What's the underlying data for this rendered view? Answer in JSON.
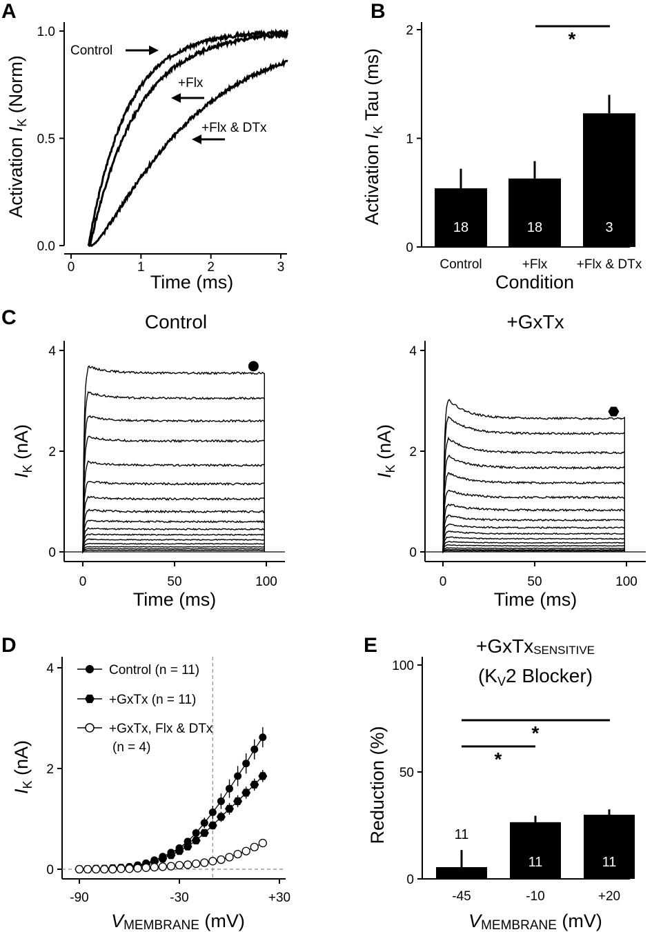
{
  "chart_data": [
    {
      "panel": "A",
      "type": "line",
      "title": "",
      "xlabel": "Time (ms)",
      "ylabel_prefix": "Activation ",
      "ylabel_italic": "I",
      "ylabel_sub": "K",
      "ylabel_suffix": " (Norm)",
      "xlim": [
        -0.2,
        3.1
      ],
      "ylim": [
        0,
        1.0
      ],
      "xticks": [
        "0",
        "1",
        "2",
        "3"
      ],
      "yticks": [
        "0.0",
        "0.5",
        "1.0"
      ],
      "series": [
        {
          "name": "Control",
          "tau": 0.55,
          "delay": 0.25
        },
        {
          "name": "+Flx",
          "tau": 0.68,
          "delay": 0.27
        },
        {
          "name": "+Flx & DTx",
          "tau": 1.25,
          "delay": 0.3
        }
      ],
      "annotations": [
        "Control",
        "+Flx",
        "+Flx & DTx"
      ]
    },
    {
      "panel": "B",
      "type": "bar",
      "xlabel": "Condition",
      "ylabel_prefix": "Activation ",
      "ylabel_italic": "I",
      "ylabel_sub": "K",
      "ylabel_suffix": " Tau (ms)",
      "ylim": [
        0,
        2
      ],
      "yticks": [
        "0",
        "1",
        "2"
      ],
      "categories": [
        "Control",
        "+Flx",
        "+Flx & DTx"
      ],
      "values": [
        0.54,
        0.63,
        1.23
      ],
      "errors": [
        0.18,
        0.16,
        0.17
      ],
      "n": [
        "18",
        "18",
        "3"
      ],
      "significance": "*"
    },
    {
      "panel": "C-left",
      "type": "line",
      "title": "Control",
      "xlabel": "Time (ms)",
      "ylabel_italic": "I",
      "ylabel_sub": "K",
      "ylabel_suffix": " (nA)",
      "xlim": [
        -10,
        110
      ],
      "ylim": [
        -0.2,
        4.2
      ],
      "xticks": [
        "0",
        "50",
        "100"
      ],
      "yticks": [
        "0",
        "2",
        "4"
      ],
      "steady_values": [
        3.55,
        3.05,
        2.6,
        2.2,
        1.72,
        1.35,
        1.05,
        0.8,
        0.6,
        0.45,
        0.34,
        0.24,
        0.16,
        0.1,
        0.06,
        0.03
      ],
      "marker": "circle"
    },
    {
      "panel": "C-right",
      "type": "line",
      "title": "+GxTx",
      "xlabel": "Time (ms)",
      "ylabel_italic": "I",
      "ylabel_sub": "K",
      "ylabel_suffix": " (nA)",
      "xlim": [
        -10,
        110
      ],
      "ylim": [
        -0.2,
        4.2
      ],
      "xticks": [
        "0",
        "50",
        "100"
      ],
      "yticks": [
        "0",
        "2",
        "4"
      ],
      "steady_values": [
        2.65,
        2.35,
        1.97,
        1.67,
        1.37,
        1.08,
        0.83,
        0.63,
        0.48,
        0.36,
        0.26,
        0.18,
        0.12,
        0.07,
        0.04,
        0.02
      ],
      "marker": "hexagon"
    },
    {
      "panel": "D",
      "type": "scatter",
      "xlabel_italic": "V",
      "xlabel_sub": "MEMBRANE",
      "xlabel_suffix": " (mV)",
      "ylabel_italic": "I",
      "ylabel_sub": "K",
      "ylabel_suffix": " (nA)",
      "xlim": [
        -95,
        32
      ],
      "ylim": [
        -0.1,
        4.2
      ],
      "xticks": [
        "-90",
        "-30",
        "+30"
      ],
      "yticks": [
        "0",
        "2",
        "4"
      ],
      "x": [
        -90,
        -85,
        -80,
        -75,
        -70,
        -65,
        -60,
        -55,
        -50,
        -45,
        -40,
        -35,
        -30,
        -25,
        -20,
        -15,
        -10,
        -5,
        0,
        5,
        10,
        15,
        20
      ],
      "series": [
        {
          "name": "Control (n = 11)",
          "values": [
            0,
            0,
            0.01,
            0.01,
            0.02,
            0.03,
            0.05,
            0.08,
            0.12,
            0.18,
            0.25,
            0.33,
            0.42,
            0.55,
            0.72,
            0.92,
            1.13,
            1.35,
            1.6,
            1.85,
            2.1,
            2.38,
            2.62
          ],
          "err": 0.2
        },
        {
          "name": "+GxTx (n = 11)",
          "values": [
            0,
            0,
            0.01,
            0.01,
            0.02,
            0.03,
            0.04,
            0.07,
            0.1,
            0.15,
            0.21,
            0.28,
            0.36,
            0.45,
            0.57,
            0.72,
            0.87,
            1.04,
            1.2,
            1.35,
            1.52,
            1.68,
            1.85
          ],
          "err": 0.12
        },
        {
          "name": "+GxTx, Flx & DTx",
          "values": [
            0,
            0,
            0,
            0,
            0,
            0.01,
            0.01,
            0.02,
            0.03,
            0.04,
            0.05,
            0.06,
            0.08,
            0.09,
            0.11,
            0.13,
            0.16,
            0.19,
            0.24,
            0.3,
            0.36,
            0.44,
            0.52
          ],
          "err": 0.06
        }
      ],
      "legend_extra": "(n = 4)",
      "vline_x": -10
    },
    {
      "panel": "E",
      "type": "bar",
      "title_main": "+GxTx",
      "title_sub": "SENSITIVE",
      "title2_pre": "(K",
      "title2_sub": "V",
      "title2_post": "2 Blocker)",
      "xlabel_italic": "V",
      "xlabel_sub": "MEMBRANE",
      "xlabel_suffix": " (mV)",
      "ylabel": "Reduction (%)",
      "ylim": [
        0,
        100
      ],
      "yticks": [
        "0",
        "50",
        "100"
      ],
      "categories": [
        "-45",
        "-10",
        "+20"
      ],
      "values": [
        5.5,
        26.5,
        30
      ],
      "errors": [
        8,
        3,
        2.5
      ],
      "n": [
        "11",
        "11",
        "11"
      ],
      "significance": [
        "*",
        "*"
      ]
    }
  ],
  "panel_labels": [
    "A",
    "B",
    "C",
    "D",
    "E"
  ]
}
